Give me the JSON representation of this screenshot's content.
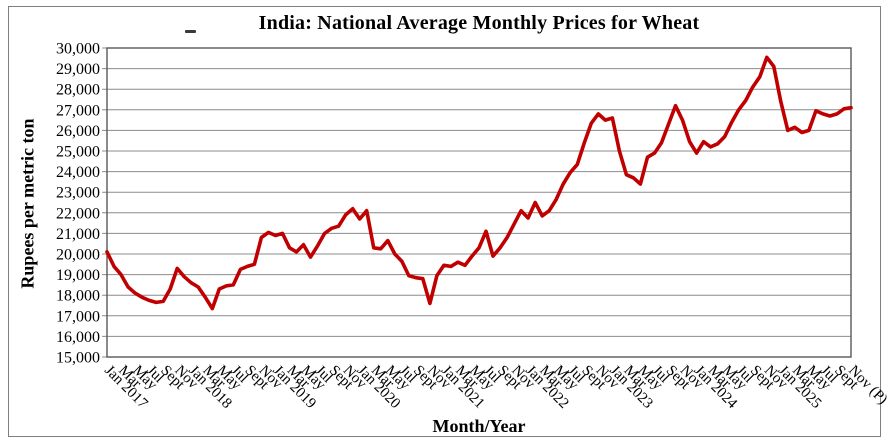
{
  "window": {
    "background_color": "#ffffff",
    "border_color": "#7f7f7f"
  },
  "chart_data": {
    "type": "line",
    "title": "India: National Average Monthly Prices for Wheat",
    "xlabel": "Month/Year",
    "ylabel": "Rupees per metric ton",
    "ylim": [
      15000,
      30000
    ],
    "ytick_step": 1000,
    "ytick_labels": [
      "15,000",
      "16,000",
      "17,000",
      "18,000",
      "19,000",
      "20,000",
      "21,000",
      "22,000",
      "23,000",
      "24,000",
      "25,000",
      "26,000",
      "27,000",
      "28,000",
      "29,000",
      "30,000"
    ],
    "grid": "horizontal-only",
    "legend_position": "none",
    "line_color": "#C00000",
    "gridline_color": "#8c8c8c",
    "frame_color": "#595959",
    "x_tick_every": 2,
    "x_tick_labels": [
      "Jan 2017",
      "Mar",
      "May",
      "Jul",
      "Sept",
      "Nov",
      "Jan 2018",
      "Mar",
      "May",
      "Jul",
      "Sept",
      "Nov",
      "Jan 2019",
      "Mar",
      "May",
      "Jul",
      "Sept",
      "Nov",
      "Jan 2020",
      "Mar",
      "May",
      "Jul",
      "Sept",
      "Nov",
      "Jan 2021",
      "Mar",
      "May",
      "Jul",
      "Sept",
      "Nov",
      "Jan 2022",
      "Mar",
      "May",
      "Jul",
      "Sept",
      "Nov",
      "Jan 2023",
      "Mar",
      "May",
      "Jul",
      "Sept",
      "Nov",
      "Jan 2024",
      "Mar",
      "May",
      "Jul",
      "Sept",
      "Nov",
      "Jan 2025",
      "Mar",
      "May",
      "Jul",
      "Sept",
      "Nov (P)"
    ],
    "months": [
      "Jan 2017",
      "Feb 2017",
      "Mar 2017",
      "Apr 2017",
      "May 2017",
      "Jun 2017",
      "Jul 2017",
      "Aug 2017",
      "Sep 2017",
      "Oct 2017",
      "Nov 2017",
      "Dec 2017",
      "Jan 2018",
      "Feb 2018",
      "Mar 2018",
      "Apr 2018",
      "May 2018",
      "Jun 2018",
      "Jul 2018",
      "Aug 2018",
      "Sep 2018",
      "Oct 2018",
      "Nov 2018",
      "Dec 2018",
      "Jan 2019",
      "Feb 2019",
      "Mar 2019",
      "Apr 2019",
      "May 2019",
      "Jun 2019",
      "Jul 2019",
      "Aug 2019",
      "Sep 2019",
      "Oct 2019",
      "Nov 2019",
      "Dec 2019",
      "Jan 2020",
      "Feb 2020",
      "Mar 2020",
      "Apr 2020",
      "May 2020",
      "Jun 2020",
      "Jul 2020",
      "Aug 2020",
      "Sep 2020",
      "Oct 2020",
      "Nov 2020",
      "Dec 2020",
      "Jan 2021",
      "Feb 2021",
      "Mar 2021",
      "Apr 2021",
      "May 2021",
      "Jun 2021",
      "Jul 2021",
      "Aug 2021",
      "Sep 2021",
      "Oct 2021",
      "Nov 2021",
      "Dec 2021",
      "Jan 2022",
      "Feb 2022",
      "Mar 2022",
      "Apr 2022",
      "May 2022",
      "Jun 2022",
      "Jul 2022",
      "Aug 2022",
      "Sep 2022",
      "Oct 2022",
      "Nov 2022",
      "Dec 2022",
      "Jan 2023",
      "Feb 2023",
      "Mar 2023",
      "Apr 2023",
      "May 2023",
      "Jun 2023",
      "Jul 2023",
      "Aug 2023",
      "Sep 2023",
      "Oct 2023",
      "Nov 2023",
      "Dec 2023",
      "Jan 2024",
      "Feb 2024",
      "Mar 2024",
      "Apr 2024",
      "May 2024",
      "Jun 2024",
      "Jul 2024",
      "Aug 2024",
      "Sep 2024",
      "Oct 2024",
      "Nov 2024",
      "Dec 2024",
      "Jan 2025",
      "Feb 2025",
      "Mar 2025",
      "Apr 2025",
      "May 2025",
      "Jun 2025",
      "Jul 2025",
      "Aug 2025",
      "Sep 2025",
      "Oct 2025",
      "Nov 2025 (P)"
    ],
    "series": [
      {
        "name": "National average monthly wheat price (Rupees per metric ton)",
        "values": [
          20100,
          19400,
          19000,
          18400,
          18100,
          17900,
          17750,
          17650,
          17700,
          18300,
          19300,
          18900,
          18600,
          18400,
          17900,
          17350,
          18300,
          18450,
          18500,
          19250,
          19400,
          19500,
          20800,
          21050,
          20900,
          21000,
          20300,
          20100,
          20450,
          19850,
          20400,
          21000,
          21250,
          21350,
          21900,
          22200,
          21700,
          22100,
          20300,
          20250,
          20650,
          20000,
          19650,
          18950,
          18850,
          18800,
          17600,
          18950,
          19450,
          19400,
          19600,
          19450,
          19900,
          20300,
          21100,
          19900,
          20300,
          20800,
          21450,
          22100,
          21750,
          22500,
          21850,
          22100,
          22650,
          23400,
          23950,
          24350,
          25400,
          26350,
          26800,
          26500,
          26600,
          25000,
          23850,
          23700,
          23400,
          24700,
          24900,
          25400,
          26300,
          27200,
          26500,
          25450,
          24900,
          25450,
          25200,
          25350,
          25700,
          26400,
          27000,
          27450,
          28100,
          28600,
          29550,
          29100,
          27400,
          26000,
          26150,
          25900,
          26000,
          26950,
          26800,
          26700,
          26800,
          27050,
          27100
        ]
      }
    ]
  }
}
